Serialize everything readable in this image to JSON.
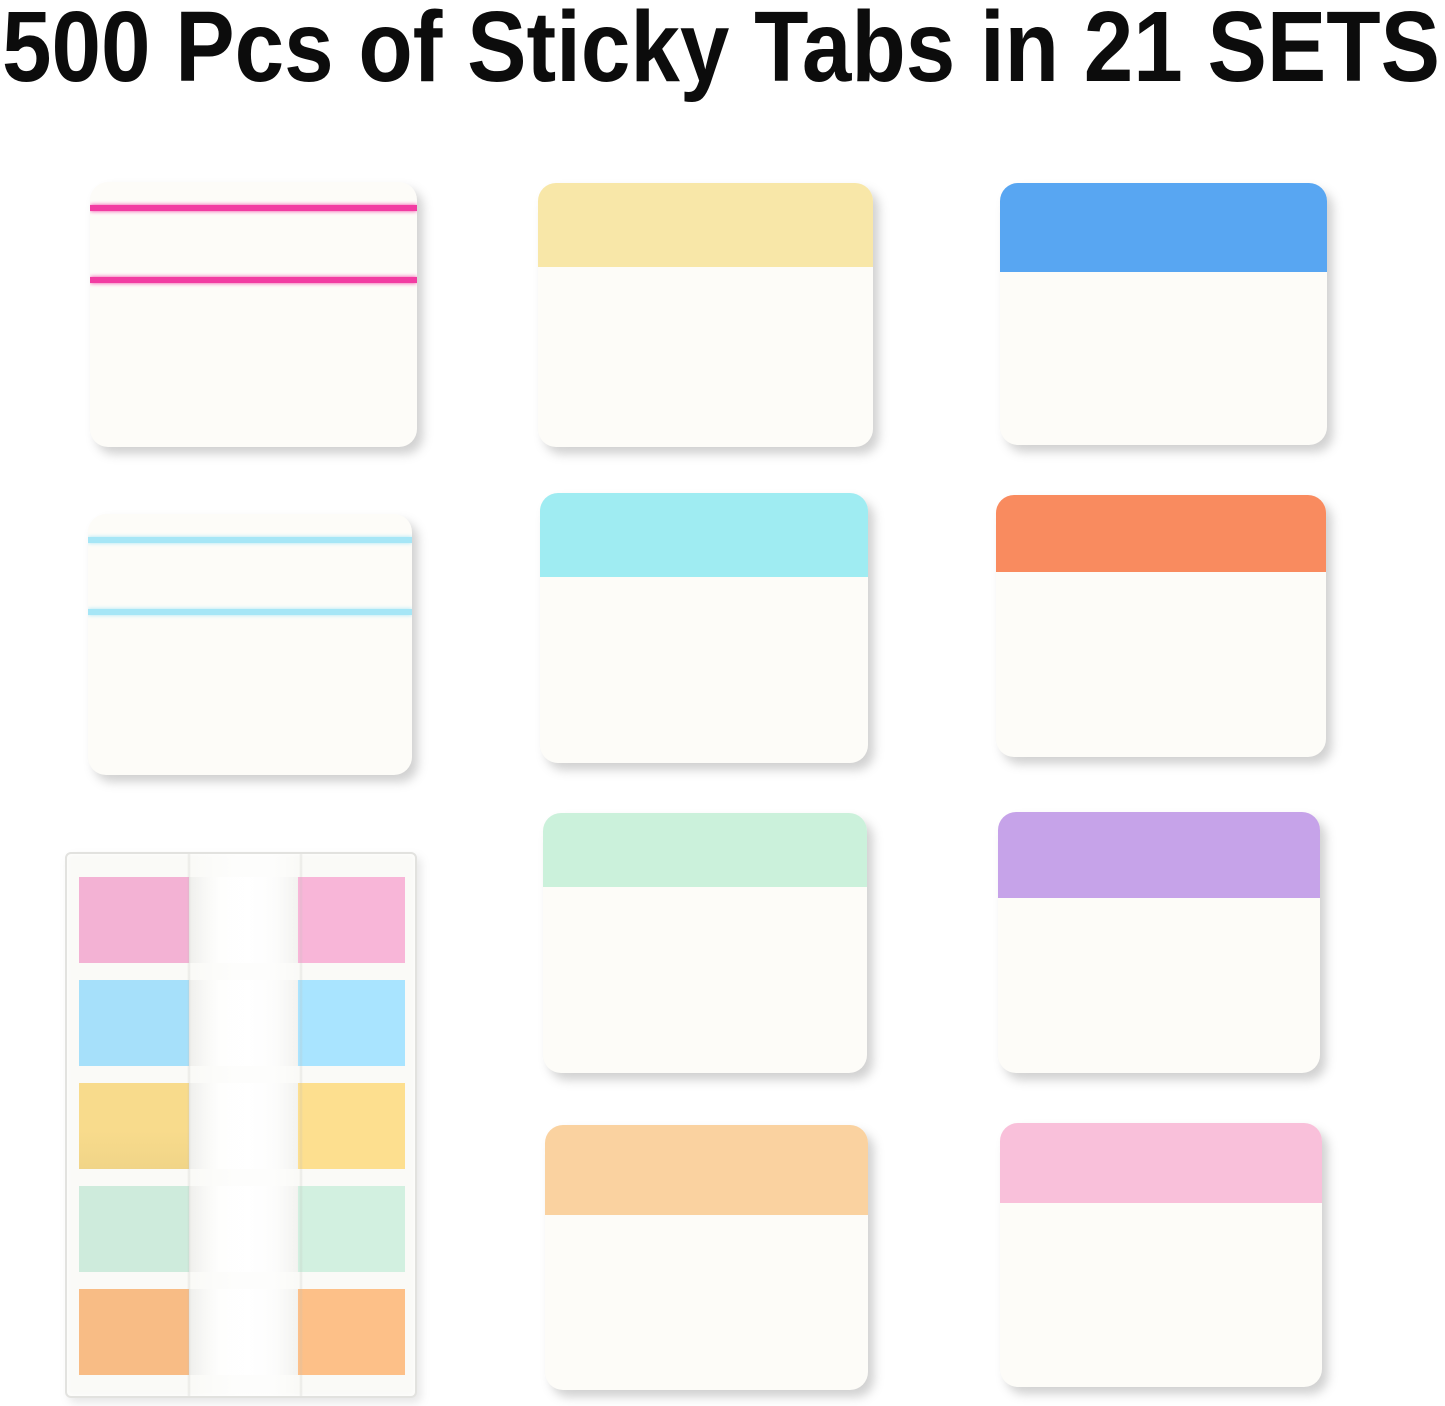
{
  "title": "500 Pcs of Sticky Tabs in 21 SETS",
  "tabs": [
    {
      "id": "ruled-pink",
      "style": "ruled",
      "line_color": "#f23ca2"
    },
    {
      "id": "yellow",
      "style": "color-top",
      "band_color": "#f8e7a8"
    },
    {
      "id": "blue",
      "style": "color-top",
      "band_color": "#58a6f2"
    },
    {
      "id": "ruled-blue",
      "style": "ruled",
      "line_color": "#a6e6f6"
    },
    {
      "id": "cyan",
      "style": "color-top",
      "band_color": "#9fecf2"
    },
    {
      "id": "orange",
      "style": "color-top",
      "band_color": "#f98b5f"
    },
    {
      "id": "mint",
      "style": "color-top",
      "band_color": "#cbf1db"
    },
    {
      "id": "purple",
      "style": "color-top",
      "band_color": "#c6a3e9"
    },
    {
      "id": "peach",
      "style": "color-top",
      "band_color": "#fad2a0"
    },
    {
      "id": "pink",
      "style": "color-top",
      "band_color": "#f9c0da"
    }
  ],
  "package": {
    "flag_colors": [
      "#f3b2d4",
      "#a6e0fa",
      "#f8db8c",
      "#ceebdc",
      "#f8bc85"
    ]
  }
}
